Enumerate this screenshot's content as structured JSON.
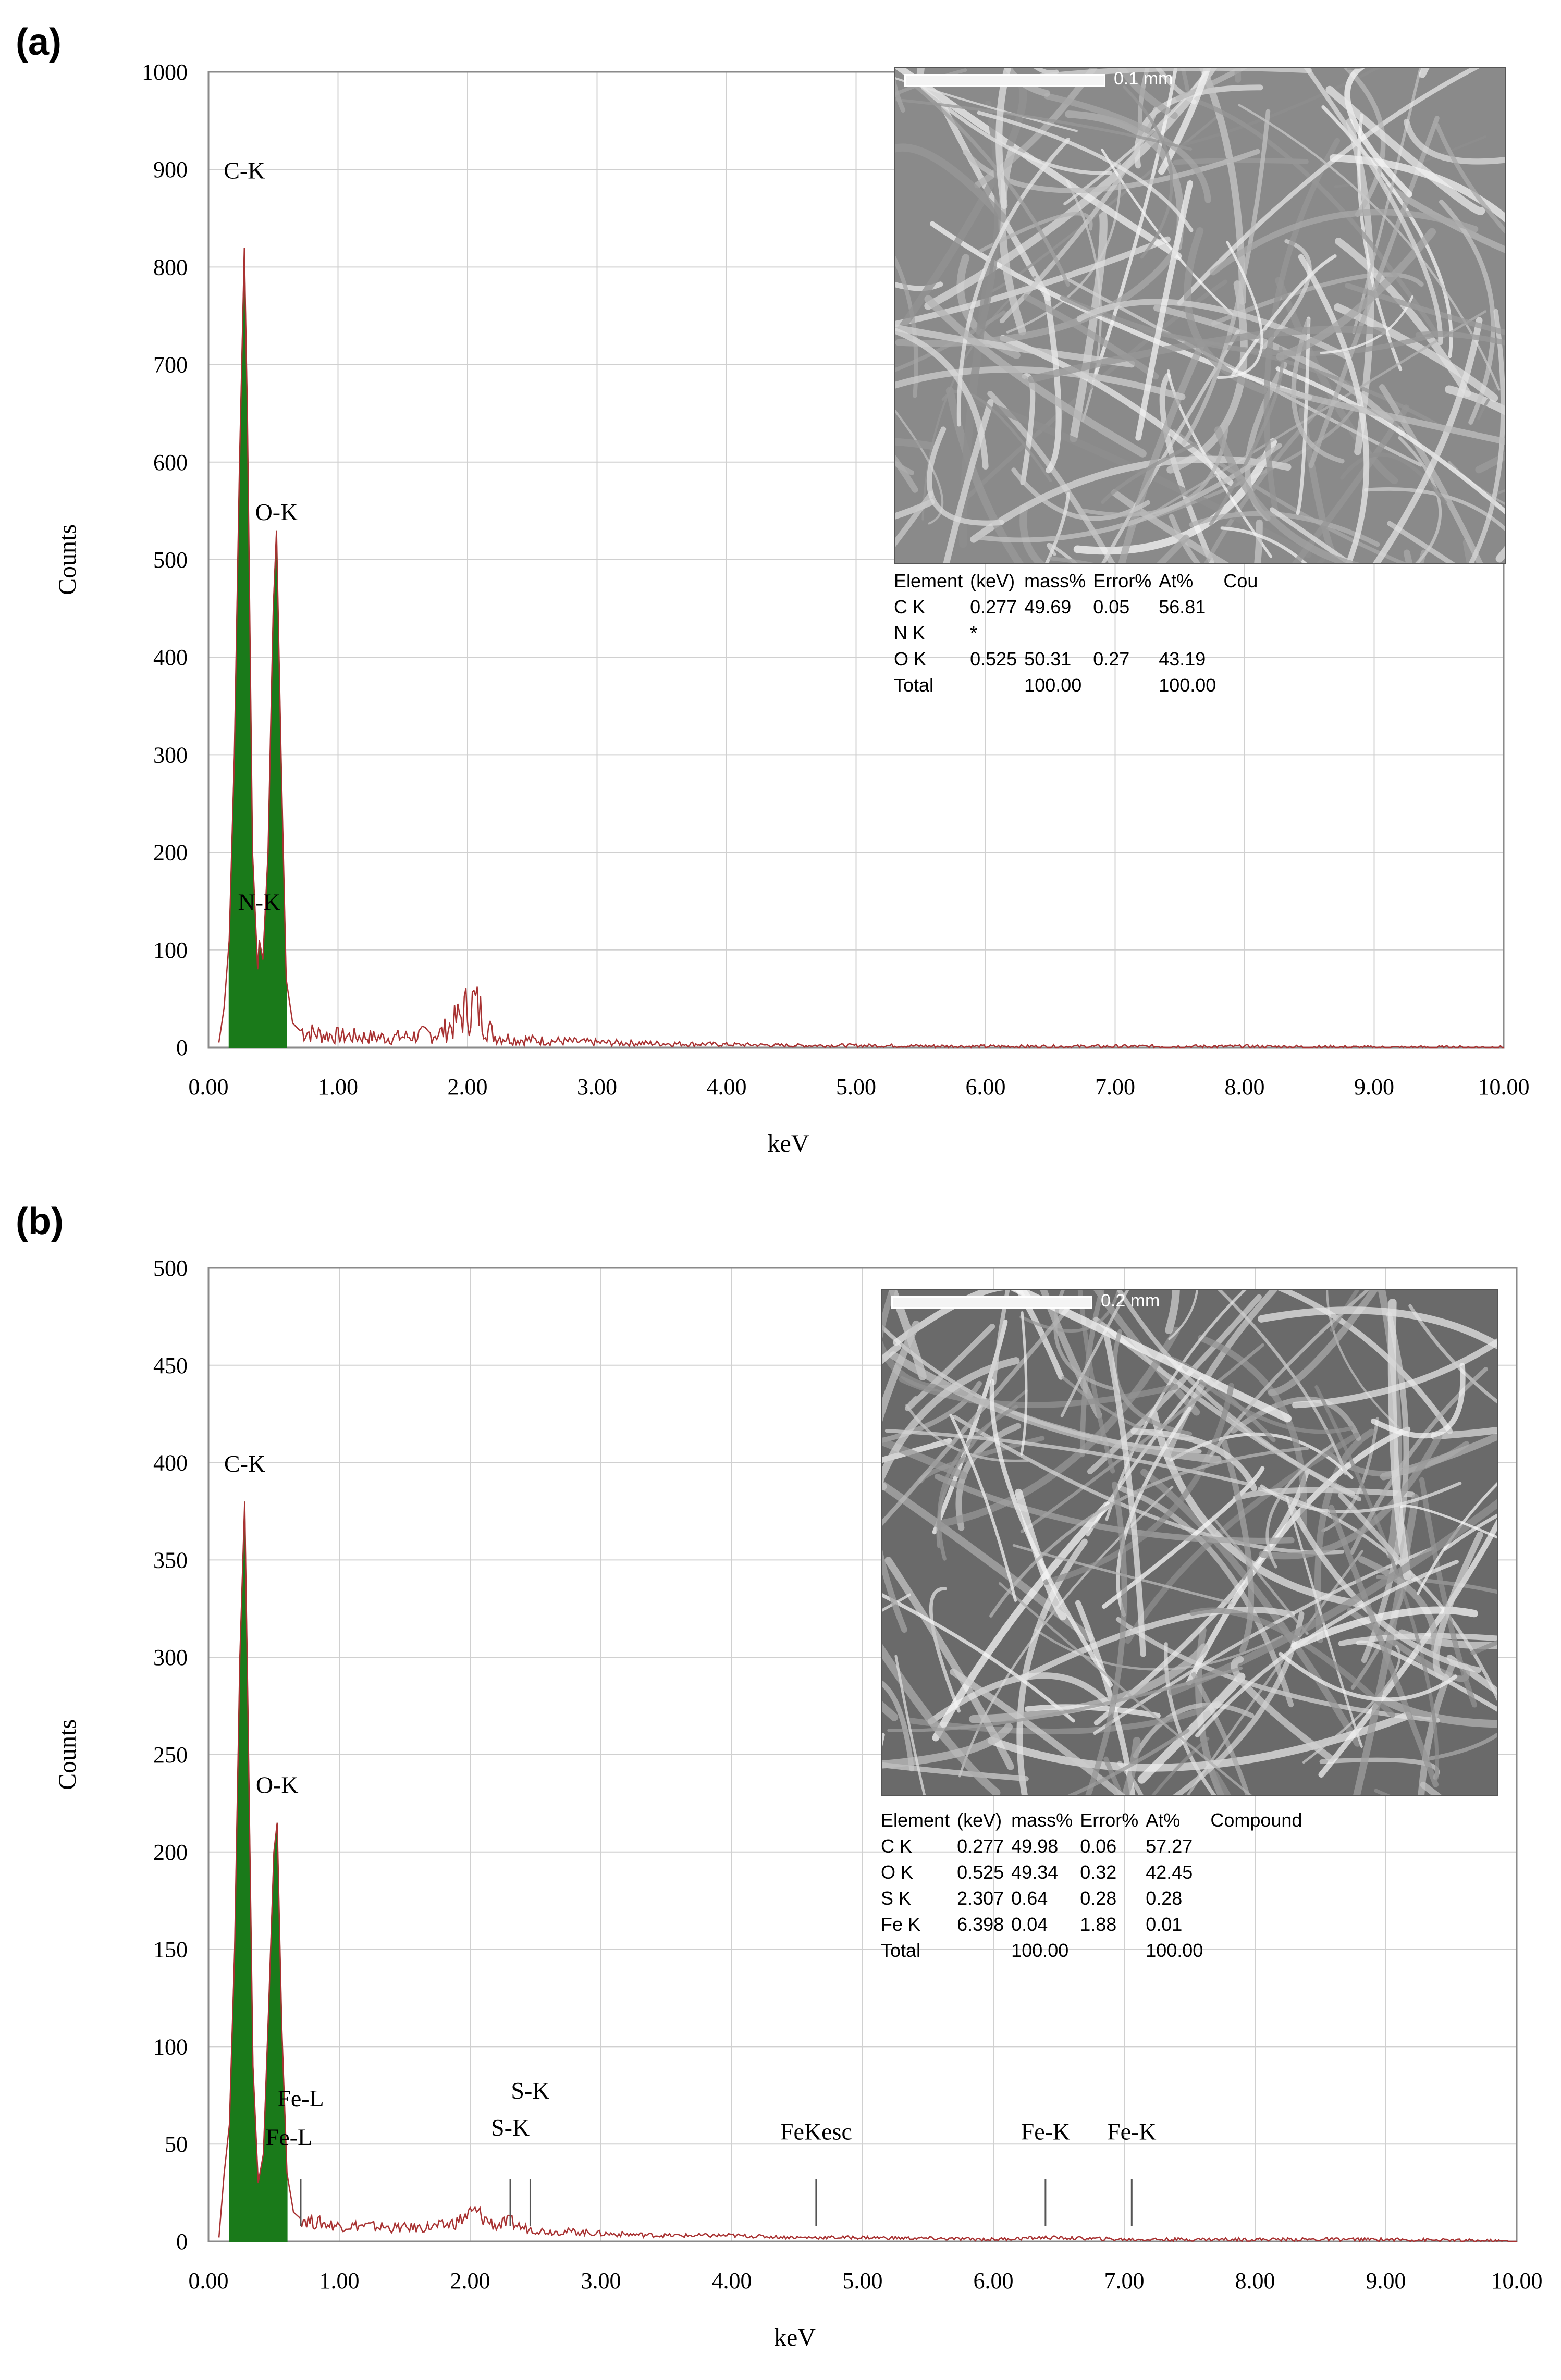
{
  "panels": [
    {
      "label": "(a)",
      "chart_data": {
        "type": "line",
        "title": "",
        "xlabel": "keV",
        "ylabel": "Counts",
        "xlim": [
          0,
          10
        ],
        "ylim": [
          0,
          1000
        ],
        "xticks": [
          "0.00",
          "1.00",
          "2.00",
          "3.00",
          "4.00",
          "5.00",
          "6.00",
          "7.00",
          "8.00",
          "9.00",
          "10.00"
        ],
        "yticks": [
          "0",
          "100",
          "200",
          "300",
          "400",
          "500",
          "600",
          "700",
          "800",
          "900",
          "1000"
        ],
        "grid": true,
        "series": [
          {
            "x": [
              0.08,
              0.12,
              0.16,
              0.2,
              0.24,
              0.277,
              0.3,
              0.34,
              0.38,
              0.392,
              0.42,
              0.46,
              0.5,
              0.525,
              0.56,
              0.6,
              0.65,
              0.7,
              0.8,
              0.9,
              1.0,
              1.2,
              1.4,
              1.6,
              1.8,
              1.9,
              2.0,
              2.05,
              2.1,
              2.2,
              2.4,
              2.6,
              2.8,
              3.0,
              3.5,
              4.0,
              4.5,
              5.0,
              6.0,
              7.0,
              8.0,
              9.0,
              10.0
            ],
            "y": [
              5,
              40,
              110,
              300,
              600,
              820,
              650,
              200,
              80,
              110,
              90,
              200,
              450,
              530,
              300,
              70,
              25,
              18,
              15,
              13,
              12,
              11,
              10,
              12,
              15,
              25,
              40,
              45,
              35,
              12,
              8,
              7,
              6,
              5,
              4,
              3,
              2,
              2,
              1,
              1,
              1,
              0,
              0
            ]
          }
        ],
        "peak_labels": [
          {
            "text": "C-K",
            "x": 0.277,
            "y": 880
          },
          {
            "text": "O-K",
            "x": 0.525,
            "y": 530
          },
          {
            "text": "N-K",
            "x": 0.392,
            "y": 130
          }
        ]
      },
      "inset": {
        "scale_text": "0.1 mm",
        "table_headers": [
          "Element",
          "(keV)",
          "mass%",
          "Error%",
          "At%",
          "Cou"
        ],
        "rows": [
          [
            "C  K",
            "0.277",
            "49.69",
            "0.05",
            "56.81",
            ""
          ],
          [
            "N  K",
            "*",
            "",
            "",
            "",
            ""
          ],
          [
            "O  K",
            "0.525",
            "50.31",
            "0.27",
            "43.19",
            ""
          ],
          [
            "Total",
            "",
            "100.00",
            "",
            "100.00",
            ""
          ]
        ]
      }
    },
    {
      "label": "(b)",
      "chart_data": {
        "type": "line",
        "title": "",
        "xlabel": "keV",
        "ylabel": "Counts",
        "xlim": [
          0,
          10
        ],
        "ylim": [
          0,
          500
        ],
        "xticks": [
          "0.00",
          "1.00",
          "2.00",
          "3.00",
          "4.00",
          "5.00",
          "6.00",
          "7.00",
          "8.00",
          "9.00",
          "10.00"
        ],
        "yticks": [
          "0",
          "50",
          "100",
          "150",
          "200",
          "250",
          "300",
          "350",
          "400",
          "450",
          "500"
        ],
        "grid": true,
        "series": [
          {
            "x": [
              0.08,
              0.12,
              0.16,
              0.2,
              0.24,
              0.277,
              0.3,
              0.34,
              0.38,
              0.42,
              0.46,
              0.5,
              0.525,
              0.56,
              0.6,
              0.65,
              0.7,
              0.8,
              0.9,
              1.0,
              1.2,
              1.4,
              1.6,
              1.8,
              1.9,
              2.0,
              2.05,
              2.1,
              2.2,
              2.307,
              2.4,
              2.5,
              2.6,
              2.8,
              3.0,
              3.5,
              4.0,
              4.5,
              5.0,
              6.0,
              6.4,
              7.0,
              8.0,
              9.0,
              10.0
            ],
            "y": [
              2,
              35,
              60,
              150,
              300,
              380,
              280,
              90,
              30,
              45,
              120,
              200,
              215,
              110,
              35,
              15,
              12,
              10,
              9,
              8,
              8,
              7,
              7,
              8,
              10,
              14,
              15,
              12,
              8,
              10,
              7,
              6,
              5,
              5,
              4,
              3,
              3,
              2,
              2,
              1,
              2,
              1,
              1,
              1,
              0
            ]
          }
        ],
        "peak_labels": [
          {
            "text": "C-K",
            "x": 0.277,
            "y": 390
          },
          {
            "text": "O-K",
            "x": 0.525,
            "y": 225
          },
          {
            "text": "Fe-L",
            "x": 0.705,
            "y": 64
          },
          {
            "text": "Fe-L",
            "x": 0.615,
            "y": 44
          },
          {
            "text": "S-K",
            "x": 2.46,
            "y": 68
          },
          {
            "text": "S-K",
            "x": 2.307,
            "y": 49
          },
          {
            "text": "FeKesc",
            "x": 4.645,
            "y": 47
          },
          {
            "text": "Fe-K",
            "x": 6.398,
            "y": 47
          },
          {
            "text": "Fe-K",
            "x": 7.057,
            "y": 47
          }
        ],
        "marker_lines": [
          0.705,
          2.307,
          2.46,
          4.645,
          6.398,
          7.057
        ]
      },
      "inset": {
        "scale_text": "0.2 mm",
        "table_headers": [
          "Element",
          "(keV)",
          "mass%",
          "Error%",
          "At%",
          "Compound"
        ],
        "rows": [
          [
            "C  K",
            "0.277",
            "49.98",
            "0.06",
            "57.27",
            ""
          ],
          [
            "O  K",
            "0.525",
            "49.34",
            "0.32",
            "42.45",
            ""
          ],
          [
            "S  K",
            "2.307",
            "0.64",
            "0.28",
            "0.28",
            ""
          ],
          [
            "Fe K",
            "6.398",
            "0.04",
            "1.88",
            "0.01",
            ""
          ],
          [
            "Total",
            "",
            "100.00",
            "",
            "100.00",
            ""
          ]
        ]
      }
    }
  ],
  "colors": {
    "fill": "#1a7a1a",
    "trace": "#a83232",
    "grid": "#d0d0d0",
    "frame": "#8a8a8a"
  }
}
